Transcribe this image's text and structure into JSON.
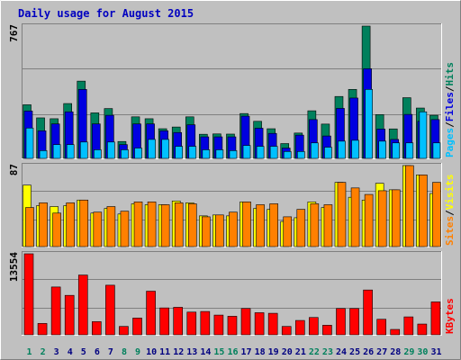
{
  "title": "Daily usage for August 2015",
  "colors": {
    "background": "#c0c0c0",
    "title": "#0000c0",
    "hits": "#00805c",
    "files": "#0000e0",
    "pages": "#00c0ff",
    "visits": "#ffff00",
    "sites": "#ff8000",
    "kbytes": "#ff0000",
    "weekend_label": "#00805c",
    "weekday_label": "#000080"
  },
  "chart_data": [
    {
      "type": "bar",
      "panel": "hits-files-pages",
      "ymax_label": "767",
      "ylim": [
        0,
        767
      ],
      "legend": {
        "pages": "Pages",
        "files": "Files",
        "hits": "Hits",
        "sep1": "/",
        "sep2": "/"
      },
      "categories": [
        "1",
        "2",
        "3",
        "4",
        "5",
        "6",
        "7",
        "8",
        "9",
        "10",
        "11",
        "12",
        "13",
        "14",
        "15",
        "16",
        "17",
        "18",
        "19",
        "20",
        "21",
        "22",
        "23",
        "24",
        "25",
        "26",
        "27",
        "28",
        "29",
        "30",
        "31"
      ],
      "weekend": [
        "1",
        "2",
        "8",
        "9",
        "15",
        "16",
        "22",
        "23",
        "29",
        "30"
      ],
      "series": [
        {
          "key": "hits",
          "name": "Hits",
          "values": [
            311,
            235,
            230,
            318,
            448,
            264,
            289,
            98,
            241,
            230,
            172,
            182,
            241,
            140,
            142,
            141,
            260,
            215,
            172,
            86,
            147,
            276,
            199,
            359,
            400,
            767,
            254,
            171,
            352,
            292,
            250
          ]
        },
        {
          "key": "files",
          "name": "Files",
          "values": [
            275,
            160,
            200,
            270,
            400,
            200,
            250,
            80,
            200,
            200,
            160,
            150,
            195,
            125,
            125,
            125,
            245,
            175,
            145,
            60,
            135,
            225,
            130,
            290,
            350,
            520,
            170,
            110,
            255,
            215,
            225
          ]
        },
        {
          "key": "pages",
          "name": "Pages",
          "values": [
            176,
            45,
            80,
            80,
            95,
            50,
            95,
            50,
            60,
            110,
            110,
            70,
            70,
            50,
            50,
            45,
            75,
            70,
            70,
            40,
            40,
            90,
            65,
            100,
            105,
            400,
            100,
            90,
            90,
            270,
            90
          ]
        }
      ]
    },
    {
      "type": "bar",
      "panel": "visits-sites",
      "ymax_label": "87",
      "ylim": [
        0,
        87
      ],
      "legend": {
        "sites": "Sites",
        "visits": "Visits",
        "sep": "/"
      },
      "categories": [
        "1",
        "2",
        "3",
        "4",
        "5",
        "6",
        "7",
        "8",
        "9",
        "10",
        "11",
        "12",
        "13",
        "14",
        "15",
        "16",
        "17",
        "18",
        "19",
        "20",
        "21",
        "22",
        "23",
        "24",
        "25",
        "26",
        "27",
        "28",
        "29",
        "30",
        "31"
      ],
      "series": [
        {
          "key": "visits",
          "name": "Visits",
          "values": [
            66,
            44,
            43,
            44,
            50,
            36,
            41,
            35,
            46,
            45,
            45,
            49,
            47,
            33,
            34,
            33,
            48,
            41,
            40,
            27,
            31,
            48,
            42,
            69,
            53,
            50,
            68,
            61,
            87,
            77,
            57
          ]
        },
        {
          "key": "sites",
          "name": "Sites",
          "values": [
            42,
            47,
            36,
            47,
            50,
            37,
            43,
            38,
            48,
            48,
            45,
            47,
            46,
            32,
            34,
            37,
            48,
            45,
            46,
            32,
            40,
            46,
            45,
            69,
            63,
            56,
            60,
            61,
            87,
            77,
            69
          ]
        }
      ]
    },
    {
      "type": "bar",
      "panel": "kbytes",
      "ymax_label": "13554",
      "ylim": [
        0,
        13554
      ],
      "legend": {
        "kbytes": "KBytes"
      },
      "categories": [
        "1",
        "2",
        "3",
        "4",
        "5",
        "6",
        "7",
        "8",
        "9",
        "10",
        "11",
        "12",
        "13",
        "14",
        "15",
        "16",
        "17",
        "18",
        "19",
        "20",
        "21",
        "22",
        "23",
        "24",
        "25",
        "26",
        "27",
        "28",
        "29",
        "30",
        "31"
      ],
      "series": [
        {
          "key": "kbytes",
          "name": "KBytes",
          "values": [
            13554,
            1900,
            8000,
            6600,
            10000,
            2200,
            8300,
            1400,
            2800,
            7300,
            4500,
            4600,
            3800,
            3900,
            3300,
            3100,
            4400,
            3700,
            3600,
            1400,
            2400,
            2900,
            1600,
            4400,
            4400,
            7500,
            2600,
            900,
            3000,
            1800,
            5500
          ]
        }
      ]
    }
  ]
}
